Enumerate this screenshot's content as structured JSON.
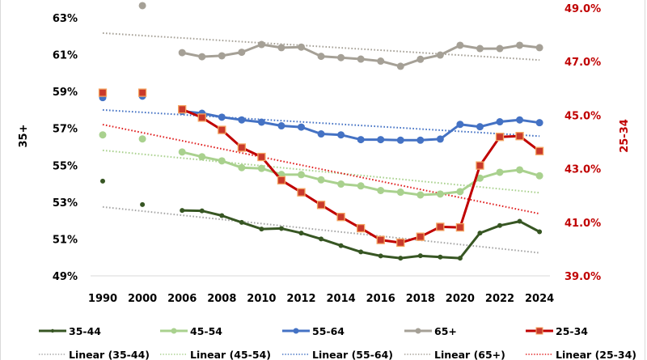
{
  "chart_data": {
    "type": "line",
    "title": "",
    "categories": [
      "1990",
      "",
      "2000",
      "",
      "2006",
      "2007",
      "2008",
      "2009",
      "2010",
      "2011",
      "2012",
      "2013",
      "2014",
      "2015",
      "2016",
      "2017",
      "2018",
      "2019",
      "2020",
      "2021",
      "2022",
      "2023",
      "2024"
    ],
    "x_tick_labels": [
      "1990",
      "2000",
      "2006",
      "2008",
      "2010",
      "2012",
      "2014",
      "2016",
      "2018",
      "2020",
      "2022",
      "2024"
    ],
    "y_left": {
      "label": "35+",
      "range": [
        49,
        63
      ],
      "ticks": [
        49,
        51,
        53,
        55,
        57,
        59,
        61,
        63
      ],
      "tick_labels": [
        "49%",
        "51%",
        "53%",
        "55%",
        "57%",
        "59%",
        "61%",
        "63%"
      ]
    },
    "y_right": {
      "label": "25-34",
      "range": [
        39,
        49
      ],
      "ticks": [
        39,
        41,
        43,
        45,
        47,
        49
      ],
      "tick_labels": [
        "39.0%",
        "41.0%",
        "43.0%",
        "45.0%",
        "47.0%",
        "49.0%"
      ]
    },
    "grid": false,
    "legend_position": "bottom",
    "series": [
      {
        "name": "35-44",
        "axis": "left",
        "color": "#375623",
        "marker": "dot-small",
        "values": [
          54.14,
          null,
          52.87,
          null,
          52.55,
          52.53,
          52.27,
          51.9,
          51.54,
          51.57,
          51.32,
          51.0,
          50.64,
          50.3,
          50.08,
          49.96,
          50.09,
          50.02,
          49.96,
          51.32,
          51.73,
          51.96,
          51.39
        ],
        "trend": {
          "name": "Linear (35-44)",
          "color": "#a6a6a6",
          "start": 52.74,
          "end": 50.25
        }
      },
      {
        "name": "45-54",
        "axis": "left",
        "color": "#a9d18e",
        "marker": "dot",
        "values": [
          56.65,
          null,
          56.43,
          null,
          55.72,
          55.46,
          55.24,
          54.87,
          54.83,
          54.5,
          54.49,
          54.21,
          53.98,
          53.88,
          53.63,
          53.54,
          53.39,
          53.44,
          53.57,
          54.3,
          54.62,
          54.75,
          54.43
        ],
        "trend": {
          "name": "Linear (45-54)",
          "color": "#a9d18e",
          "start": 55.81,
          "end": 53.51
        }
      },
      {
        "name": "55-64",
        "axis": "left",
        "color": "#4472c4",
        "marker": "dot",
        "values": [
          58.67,
          null,
          58.75,
          null,
          57.93,
          57.82,
          57.61,
          57.46,
          57.34,
          57.14,
          57.07,
          56.7,
          56.65,
          56.39,
          56.39,
          56.36,
          56.36,
          56.42,
          57.22,
          57.09,
          57.36,
          57.46,
          57.31
        ],
        "trend": {
          "name": "Linear (55-64)",
          "color": "#4472c4",
          "start": 58.0,
          "end": 56.58
        }
      },
      {
        "name": "65+",
        "axis": "left",
        "color": "#a5a096",
        "marker": "dot",
        "values": [
          null,
          null,
          63.66,
          null,
          61.11,
          60.89,
          60.94,
          61.13,
          61.55,
          61.38,
          61.41,
          60.91,
          60.84,
          60.76,
          60.65,
          60.37,
          60.75,
          60.98,
          61.51,
          61.33,
          61.33,
          61.51,
          61.38
        ],
        "trend": {
          "name": "Linear (65+)",
          "color": "#a5a096",
          "start": 62.17,
          "end": 60.71
        }
      },
      {
        "name": "25-34",
        "axis": "right",
        "color": "#c00000",
        "marker": "square",
        "marker_fill": "#c9392b",
        "marker_edge": "#f4a460",
        "values": [
          45.84,
          null,
          45.84,
          null,
          45.22,
          44.91,
          44.45,
          43.79,
          43.44,
          42.57,
          42.12,
          41.65,
          41.2,
          40.78,
          40.34,
          40.24,
          40.46,
          40.83,
          40.81,
          43.12,
          44.19,
          44.22,
          43.66
        ],
        "trend": {
          "name": "Linear (25-34)",
          "color": "#e02020",
          "start": 44.65,
          "end": 41.32
        }
      }
    ]
  }
}
